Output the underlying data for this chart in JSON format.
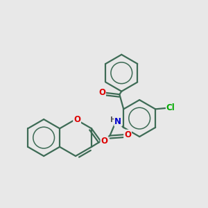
{
  "bg_color": "#e8e8e8",
  "bond_color": "#3d6b55",
  "bond_width": 1.6,
  "atoms": {
    "O_red": "#dd0000",
    "N_blue": "#0000cc",
    "Cl_green": "#00aa00"
  },
  "font_size_atom": 8.5,
  "xlim": [
    0,
    10
  ],
  "ylim": [
    0,
    10
  ]
}
